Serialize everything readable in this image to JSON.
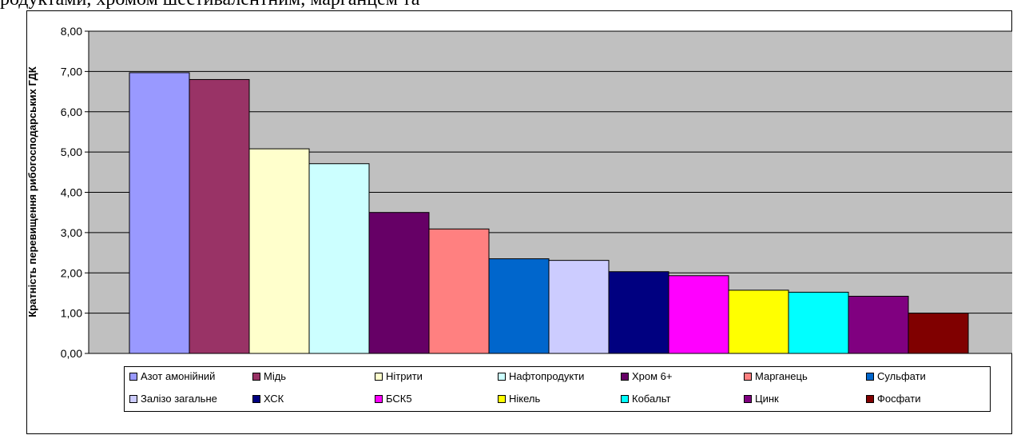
{
  "top_text": "родуктами, хромом шестивалентним, марганцем та",
  "chart_data": {
    "type": "bar",
    "title": "",
    "xlabel": "",
    "ylabel": "Кратність перевищення рибогосподарських ГДК",
    "ylim": [
      0,
      8
    ],
    "ytick_step": 1,
    "ytick_labels": [
      "0,00",
      "1,00",
      "2,00",
      "3,00",
      "4,00",
      "5,00",
      "6,00",
      "7,00",
      "8,00"
    ],
    "grid": true,
    "legend_position": "bottom",
    "plot_background": "#c0c0c0",
    "series": [
      {
        "name": "Азот амонійний",
        "value": 6.97,
        "color": "#9999ff"
      },
      {
        "name": "Мідь",
        "value": 6.8,
        "color": "#993366"
      },
      {
        "name": "Нітрити",
        "value": 5.08,
        "color": "#ffffcc"
      },
      {
        "name": "Нафтопродукти",
        "value": 4.71,
        "color": "#ccffff"
      },
      {
        "name": "Хром 6+",
        "value": 3.5,
        "color": "#660066"
      },
      {
        "name": "Марганець",
        "value": 3.09,
        "color": "#ff8080"
      },
      {
        "name": "Сульфати",
        "value": 2.35,
        "color": "#0066cc"
      },
      {
        "name": "Залізо загальне",
        "value": 2.31,
        "color": "#ccccff"
      },
      {
        "name": "ХСК",
        "value": 2.03,
        "color": "#000080"
      },
      {
        "name": "БСК5",
        "value": 1.93,
        "color": "#ff00ff"
      },
      {
        "name": "Нікель",
        "value": 1.57,
        "color": "#ffff00"
      },
      {
        "name": "Кобальт",
        "value": 1.52,
        "color": "#00ffff"
      },
      {
        "name": "Цинк",
        "value": 1.42,
        "color": "#800080"
      },
      {
        "name": "Фосфати",
        "value": 1.0,
        "color": "#800000"
      }
    ]
  }
}
